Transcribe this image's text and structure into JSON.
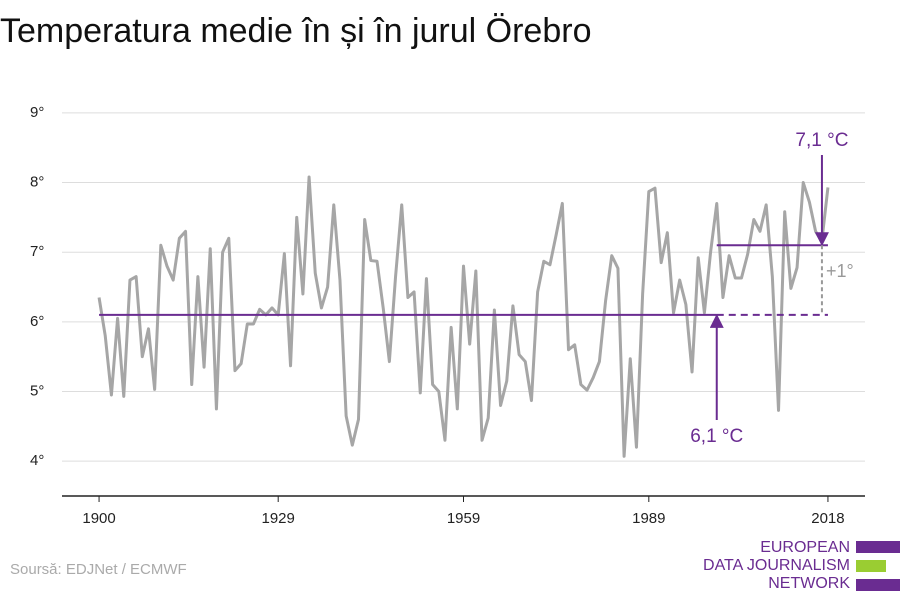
{
  "chart_data": {
    "type": "line",
    "title": "Temperatura medie în și în jurul Örebro",
    "x": [
      1900,
      1901,
      1902,
      1903,
      1904,
      1905,
      1906,
      1907,
      1908,
      1909,
      1910,
      1911,
      1912,
      1913,
      1914,
      1915,
      1916,
      1917,
      1918,
      1919,
      1920,
      1921,
      1922,
      1923,
      1924,
      1925,
      1926,
      1927,
      1928,
      1929,
      1930,
      1931,
      1932,
      1933,
      1934,
      1935,
      1936,
      1937,
      1938,
      1939,
      1940,
      1941,
      1942,
      1943,
      1944,
      1945,
      1946,
      1947,
      1948,
      1949,
      1950,
      1951,
      1952,
      1953,
      1954,
      1955,
      1956,
      1957,
      1958,
      1959,
      1960,
      1961,
      1962,
      1963,
      1964,
      1965,
      1966,
      1967,
      1968,
      1969,
      1970,
      1971,
      1972,
      1973,
      1974,
      1975,
      1976,
      1977,
      1978,
      1979,
      1980,
      1981,
      1982,
      1983,
      1984,
      1985,
      1986,
      1987,
      1988,
      1989,
      1990,
      1991,
      1992,
      1993,
      1994,
      1995,
      1996,
      1997,
      1998,
      1999,
      2000,
      2001,
      2002,
      2003,
      2004,
      2005,
      2006,
      2007,
      2008,
      2009,
      2010,
      2011,
      2012,
      2013,
      2014,
      2015,
      2016,
      2017,
      2018
    ],
    "series": [
      {
        "color": "#a6a6a6",
        "values": [
          6.35,
          5.8,
          4.95,
          6.05,
          4.93,
          6.6,
          6.65,
          5.5,
          5.9,
          5.03,
          7.1,
          6.8,
          6.6,
          7.2,
          7.3,
          5.1,
          6.65,
          5.35,
          7.05,
          4.75,
          7.0,
          7.2,
          5.3,
          5.4,
          5.97,
          5.97,
          6.18,
          6.1,
          6.2,
          6.1,
          6.98,
          5.37,
          7.5,
          6.4,
          8.08,
          6.7,
          6.2,
          6.5,
          7.68,
          6.6,
          4.65,
          4.23,
          4.6,
          7.47,
          6.88,
          6.87,
          6.2,
          5.43,
          6.65,
          7.68,
          6.35,
          6.43,
          4.98,
          6.62,
          5.1,
          5.0,
          4.3,
          5.92,
          4.75,
          6.8,
          5.68,
          6.73,
          4.3,
          4.62,
          6.17,
          4.8,
          5.15,
          6.23,
          5.53,
          5.43,
          4.87,
          6.43,
          6.87,
          6.82,
          7.25,
          7.7,
          5.6,
          5.67,
          5.1,
          5.02,
          5.2,
          5.43,
          6.3,
          6.95,
          6.77,
          4.07,
          5.47,
          4.2,
          6.4,
          7.87,
          7.92,
          6.85,
          7.28,
          6.13,
          6.6,
          6.25,
          5.28,
          6.92,
          6.13,
          7.0,
          7.7,
          6.35,
          6.95,
          6.63,
          6.63,
          6.97,
          7.47,
          7.3,
          7.68,
          6.65,
          4.73,
          7.58,
          6.48,
          6.78,
          8.0,
          7.72,
          7.3,
          7.15,
          7.93
        ]
      }
    ],
    "xlim": [
      1894,
      2024
    ],
    "xticks": [
      1900,
      1929,
      1959,
      1989,
      2018
    ],
    "ylim": [
      3.5,
      9.3
    ],
    "yticks": [
      {
        "value": 4,
        "label": "4°"
      },
      {
        "value": 5,
        "label": "5°"
      },
      {
        "value": 6,
        "label": "6°"
      },
      {
        "value": 7,
        "label": "7°"
      },
      {
        "value": 8,
        "label": "8°"
      },
      {
        "value": 9,
        "label": "9°"
      }
    ],
    "grid": true,
    "reference_color": "#6a2c91",
    "references": [
      {
        "value": 6.1,
        "label": "6,1 °C",
        "x": [
          1900,
          2000
        ],
        "dashed_x": [
          2000,
          2018
        ],
        "arrow_x": 2000
      },
      {
        "value": 7.1,
        "label": "7,1 °C",
        "x": [
          2000,
          2018
        ],
        "arrow_x": 2018
      }
    ],
    "difference_label": "+1°"
  },
  "source": "Soursă: EDJNet / ECMWF",
  "logo": [
    "EUROPEAN",
    "DATA JOURNALISM",
    "NETWORK"
  ]
}
